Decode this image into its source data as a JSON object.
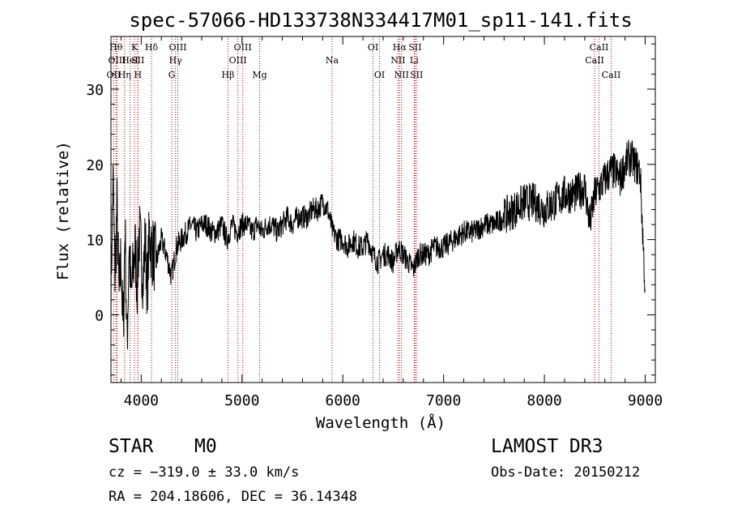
{
  "chart_data": {
    "type": "line",
    "title": "spec-57066-HD133738N334417M01_sp11-141.fits",
    "xlabel": "Wavelength (Å)",
    "ylabel": "Flux (relative)",
    "xlim": [
      3700,
      9100
    ],
    "ylim": [
      -9,
      37
    ],
    "x_ticks": [
      4000,
      5000,
      6000,
      7000,
      8000,
      9000
    ],
    "x_tick_labels": [
      "4000",
      "5000",
      "6000",
      "7000",
      "8000",
      "9000"
    ],
    "y_ticks": [
      0,
      10,
      20,
      30
    ],
    "y_tick_labels": [
      "0",
      "10",
      "20",
      "30"
    ],
    "series": [
      {
        "name": "flux",
        "x": [
          3700,
          3720,
          3740,
          3760,
          3780,
          3800,
          3820,
          3840,
          3860,
          3880,
          3900,
          3920,
          3940,
          3960,
          3980,
          4000,
          4020,
          4040,
          4060,
          4080,
          4100,
          4150,
          4200,
          4250,
          4300,
          4350,
          4400,
          4450,
          4500,
          4550,
          4600,
          4650,
          4700,
          4750,
          4800,
          4850,
          4900,
          4950,
          5000,
          5050,
          5100,
          5150,
          5200,
          5250,
          5300,
          5350,
          5400,
          5450,
          5500,
          5550,
          5600,
          5650,
          5700,
          5750,
          5800,
          5850,
          5900,
          5950,
          6000,
          6050,
          6100,
          6150,
          6200,
          6250,
          6300,
          6350,
          6400,
          6450,
          6500,
          6550,
          6600,
          6650,
          6700,
          6750,
          6800,
          6850,
          6900,
          6950,
          7000,
          7100,
          7200,
          7300,
          7400,
          7500,
          7600,
          7700,
          7800,
          7900,
          8000,
          8100,
          8200,
          8300,
          8400,
          8450,
          8500,
          8550,
          8600,
          8650,
          8700,
          8750,
          8800,
          8850,
          8900,
          8950,
          9000
        ],
        "y": [
          3,
          18,
          5,
          14,
          2,
          8,
          -3,
          12,
          -5,
          10,
          2,
          6,
          9,
          4,
          11,
          8,
          5,
          10,
          3,
          11,
          9,
          7,
          10,
          8,
          5,
          9,
          10,
          11,
          12,
          11,
          12,
          12,
          11,
          11,
          12,
          10,
          12,
          11,
          12,
          12,
          11,
          12,
          11,
          12,
          12,
          11,
          12,
          13,
          12,
          13,
          13,
          13,
          14,
          14,
          15,
          14,
          11,
          10,
          10,
          9,
          10,
          9,
          9,
          10,
          8,
          7,
          8,
          8,
          7,
          9,
          8,
          7,
          6,
          8,
          8,
          8,
          9,
          9,
          9,
          10,
          11,
          11,
          12,
          12,
          13,
          14,
          15,
          15,
          14,
          15,
          16,
          16,
          17,
          12,
          16,
          17,
          18,
          19,
          19,
          18,
          20,
          21,
          20,
          19,
          3
        ]
      }
    ],
    "spectral_lines": [
      {
        "label": "OII",
        "wavelength": 3727,
        "row": 3
      },
      {
        "label": "Hθ",
        "wavelength": 3750,
        "row": 1
      },
      {
        "label": "OIII",
        "wavelength": 3760,
        "row": 2
      },
      {
        "label": "Hη",
        "wavelength": 3835,
        "row": 3
      },
      {
        "label": "HeI",
        "wavelength": 3889,
        "row": 2
      },
      {
        "label": "K",
        "wavelength": 3934,
        "row": 1
      },
      {
        "label": "SII",
        "wavelength": 3967,
        "row": 2
      },
      {
        "label": "H",
        "wavelength": 3968,
        "row": 3
      },
      {
        "label": "Hδ",
        "wavelength": 4102,
        "row": 1
      },
      {
        "label": "Hγ",
        "wavelength": 4340,
        "row": 2
      },
      {
        "label": "OIII",
        "wavelength": 4363,
        "row": 1
      },
      {
        "label": "G",
        "wavelength": 4304,
        "row": 3
      },
      {
        "label": "Hβ",
        "wavelength": 4861,
        "row": 3
      },
      {
        "label": "OIII",
        "wavelength": 4959,
        "row": 2
      },
      {
        "label": "OIII",
        "wavelength": 5007,
        "row": 1
      },
      {
        "label": "Mg",
        "wavelength": 5175,
        "row": 3
      },
      {
        "label": "Na",
        "wavelength": 5893,
        "row": 2
      },
      {
        "label": "OI",
        "wavelength": 6300,
        "row": 1
      },
      {
        "label": "OI",
        "wavelength": 6364,
        "row": 3
      },
      {
        "label": "NII",
        "wavelength": 6548,
        "row": 2
      },
      {
        "label": "Hα",
        "wavelength": 6563,
        "row": 1
      },
      {
        "label": "NII",
        "wavelength": 6583,
        "row": 3
      },
      {
        "label": "Li",
        "wavelength": 6708,
        "row": 2
      },
      {
        "label": "SII",
        "wavelength": 6717,
        "row": 1
      },
      {
        "label": "SII",
        "wavelength": 6731,
        "row": 3
      },
      {
        "label": "CaII",
        "wavelength": 8498,
        "row": 2
      },
      {
        "label": "CaII",
        "wavelength": 8542,
        "row": 1
      },
      {
        "label": "CaII",
        "wavelength": 8662,
        "row": 3
      }
    ]
  },
  "info": {
    "object_class": "STAR",
    "subclass": "M0",
    "survey": "LAMOST DR3",
    "cz": "cz = −319.0 ± 33.0 km/s",
    "obs_date": "Obs-Date: 20150212",
    "coords": "RA = 204.18606, DEC =  36.14348"
  },
  "colors": {
    "line_marker": "#b30000",
    "spectrum": "#000000",
    "axis": "#000000"
  }
}
